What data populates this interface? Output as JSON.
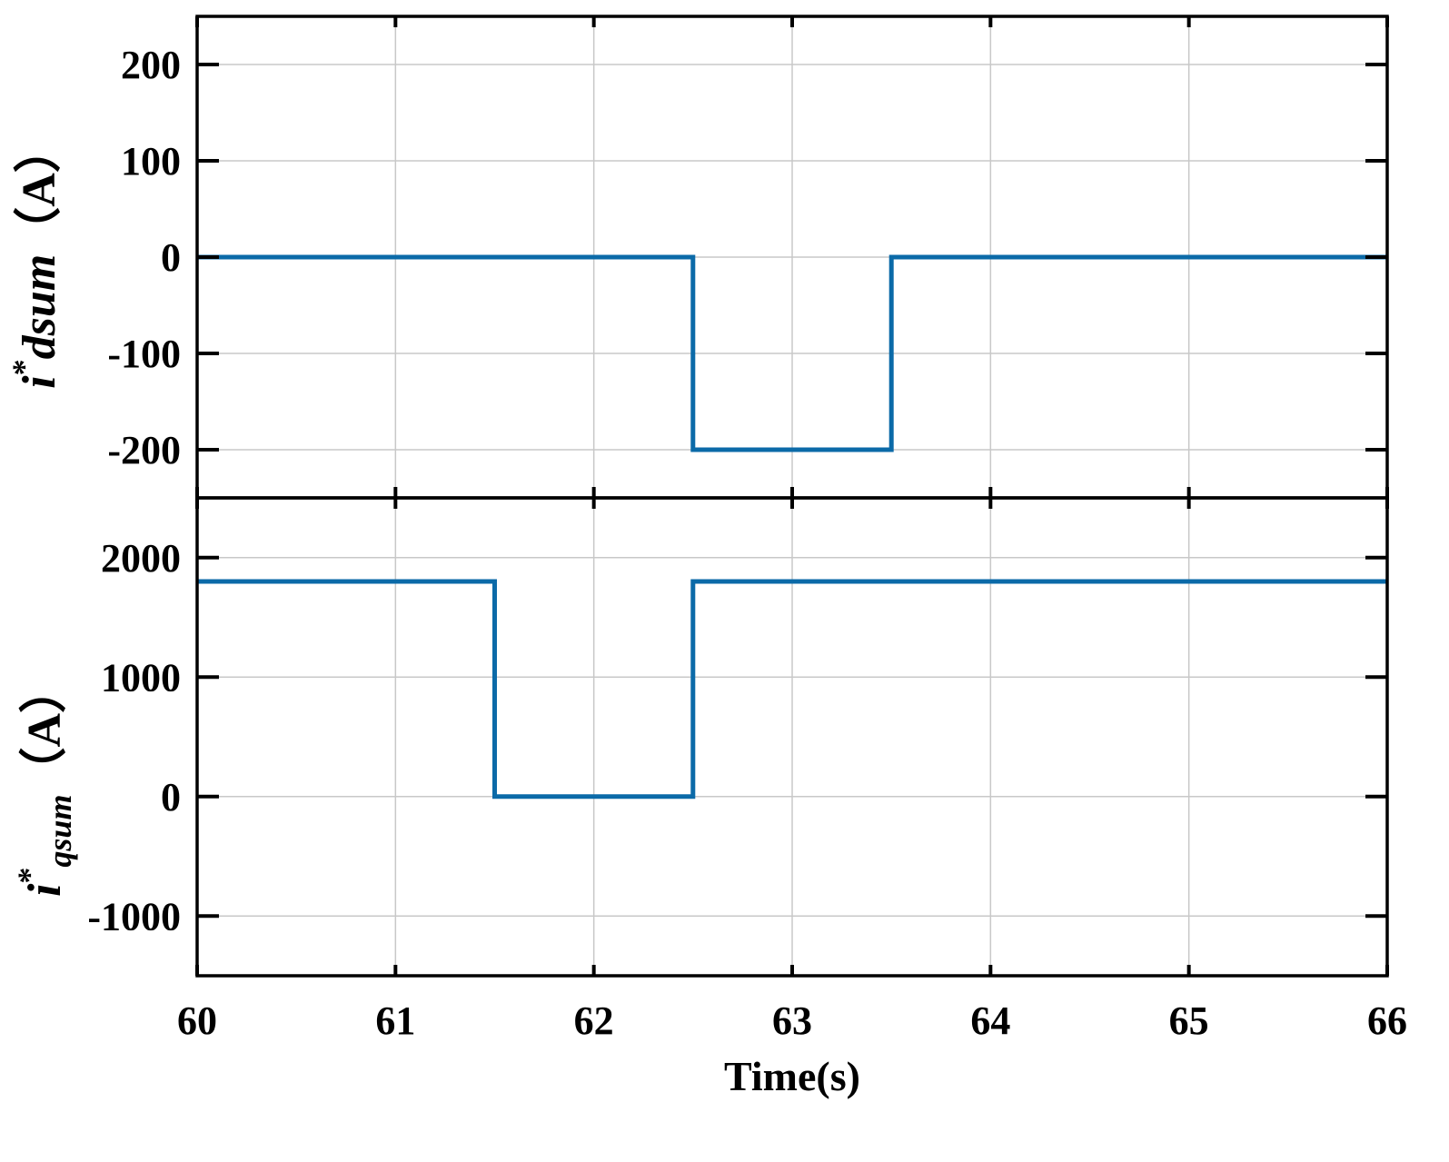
{
  "chart_data": [
    {
      "type": "line",
      "panel": "top",
      "ylabel": {
        "main": "i",
        "sup": "*",
        "rest": "dsum",
        "unit": "（A）"
      },
      "ylim": [
        -250,
        250
      ],
      "yticks": [
        200,
        100,
        0,
        -100,
        -200
      ],
      "ytick_labels": [
        "200",
        "100",
        "0",
        "-100",
        "-200"
      ],
      "xlim": [
        60,
        66
      ],
      "grid": true,
      "series": [
        {
          "color": "#0b6aa8",
          "x": [
            60,
            62.5,
            62.5,
            63.5,
            63.5,
            66
          ],
          "y": [
            0,
            0,
            -200,
            -200,
            0,
            0
          ]
        }
      ]
    },
    {
      "type": "line",
      "panel": "bottom",
      "ylabel": {
        "main": "i",
        "sup": "*",
        "sub": "qsum",
        "unit": "（A）"
      },
      "ylim": [
        -1500,
        2500
      ],
      "yticks": [
        2000,
        1000,
        0,
        -1000
      ],
      "ytick_labels": [
        "2000",
        "1000",
        "0",
        "-1000"
      ],
      "xlim": [
        60,
        66
      ],
      "xticks": [
        60,
        61,
        62,
        63,
        64,
        65,
        66
      ],
      "xtick_labels": [
        "60",
        "61",
        "62",
        "63",
        "64",
        "65",
        "66"
      ],
      "xlabel": "Time(s)",
      "grid": true,
      "series": [
        {
          "color": "#0b6aa8",
          "x": [
            60,
            61.5,
            61.5,
            62.5,
            62.5,
            66
          ],
          "y": [
            1800,
            1800,
            0,
            0,
            1800,
            1800
          ]
        }
      ]
    }
  ]
}
